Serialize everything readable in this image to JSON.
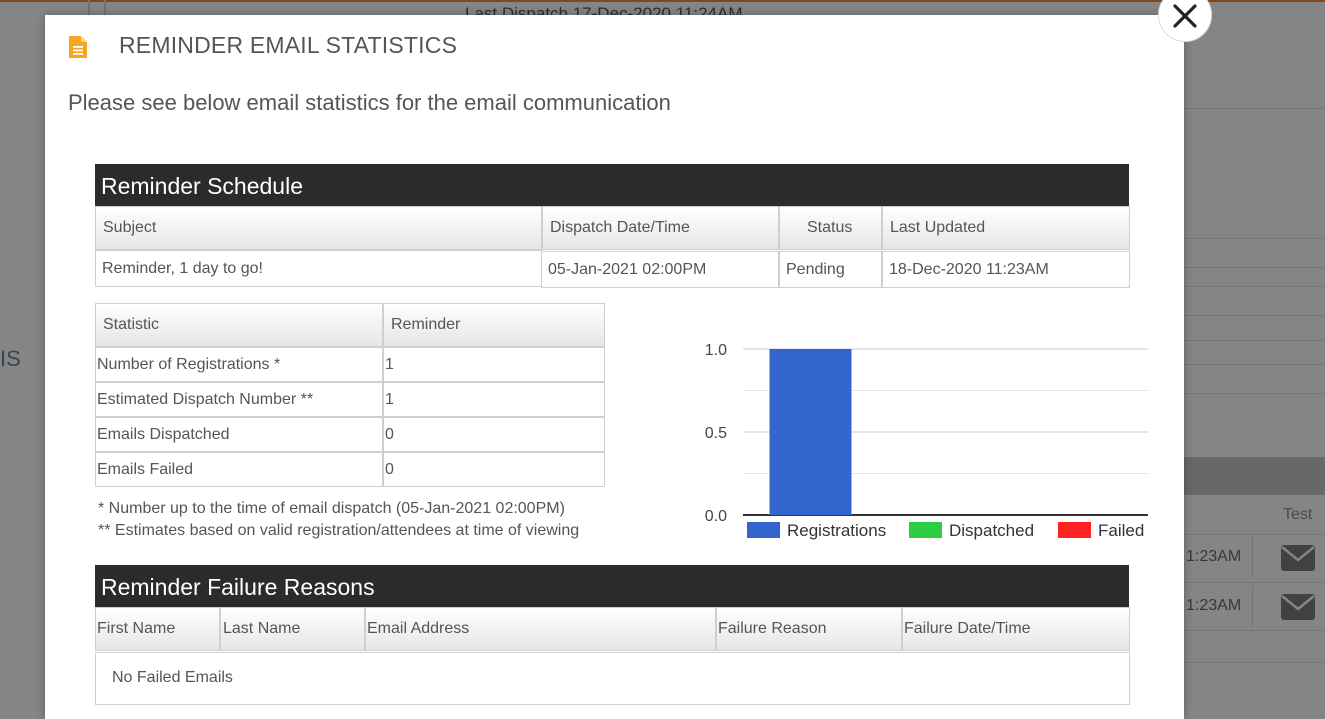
{
  "background": {
    "last_dispatch_text": "Last Dispatch      17-Dec-2020 11:24AM",
    "left_fragment": "IS",
    "column_test": "Test",
    "row_times": [
      "1:23AM",
      "1:23AM"
    ]
  },
  "modal": {
    "title": "REMINDER EMAIL STATISTICS",
    "intro": "Please see below email statistics for the email communication",
    "close_label": "X"
  },
  "schedule": {
    "header": "Reminder Schedule",
    "columns": [
      "Subject",
      "Dispatch Date/Time",
      "Status",
      "Last Updated"
    ],
    "row": {
      "subject": "Reminder, 1 day to go!",
      "dispatch": "05-Jan-2021 02:00PM",
      "status": "Pending",
      "last_updated": "18-Dec-2020 11:23AM"
    }
  },
  "statistics": {
    "columns": [
      "Statistic",
      "Reminder"
    ],
    "rows": [
      {
        "label": "Number of Registrations *",
        "value": "1"
      },
      {
        "label": "Estimated Dispatch Number **",
        "value": "1"
      },
      {
        "label": "Emails Dispatched",
        "value": "0"
      },
      {
        "label": "Emails Failed",
        "value": "0"
      }
    ],
    "notes": [
      "* Number up to the time of email dispatch (05-Jan-2021 02:00PM)",
      "** Estimates based on valid registration/attendees at time of viewing"
    ]
  },
  "chart_data": {
    "type": "bar",
    "categories": [
      "Registrations",
      "Dispatched",
      "Failed"
    ],
    "values": [
      1,
      0,
      0
    ],
    "colors": [
      "#3366cc",
      "#2ecc40",
      "#ff2222"
    ],
    "ylim": [
      0,
      1
    ],
    "yticks": [
      "0.0",
      "0.5",
      "1.0"
    ],
    "legend": "bottom",
    "grid": true,
    "title": "",
    "xlabel": "",
    "ylabel": ""
  },
  "failures": {
    "header": "Reminder Failure Reasons",
    "columns": [
      "First Name",
      "Last Name",
      "Email Address",
      "Failure Reason",
      "Failure Date/Time"
    ],
    "empty_text": "No Failed Emails"
  },
  "colors": {
    "accent": "#f5a623",
    "header_bg": "#2b2b2b"
  }
}
